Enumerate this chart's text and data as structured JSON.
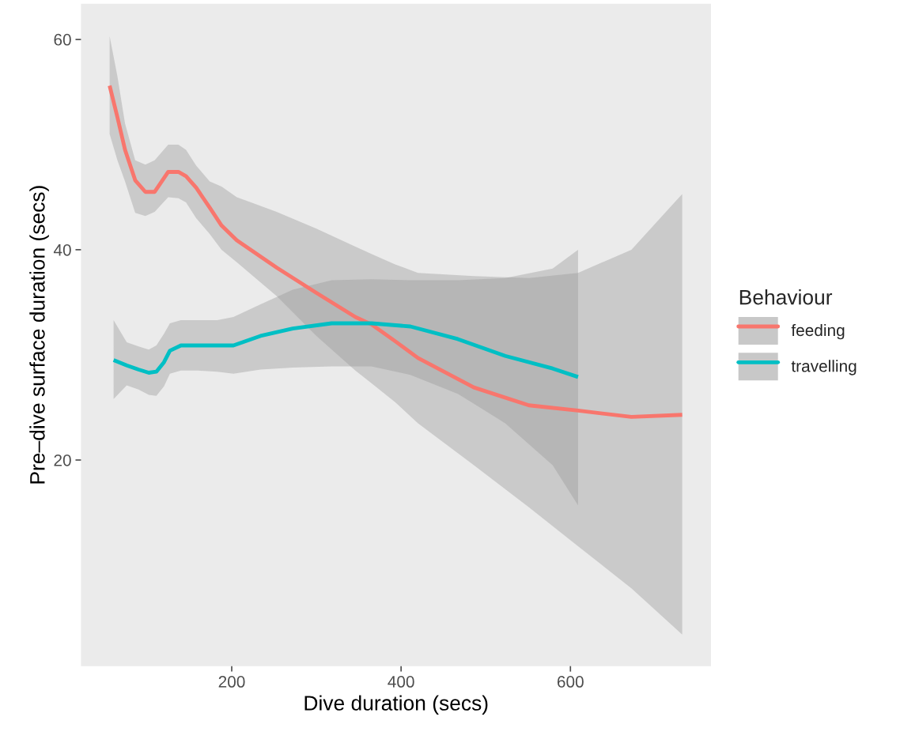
{
  "chart_data": {
    "type": "line",
    "xlabel": "Dive duration (secs)",
    "ylabel": "Pre–dive surface duration (secs)",
    "legend_title": "Behaviour",
    "legend": "right",
    "grid": false,
    "marker": "none",
    "line_style": "solid",
    "xlim": [
      22,
      766
    ],
    "ylim": [
      0.4,
      63.4
    ],
    "xticks": [
      200,
      400,
      600
    ],
    "yticks": [
      20,
      40,
      60
    ],
    "series": [
      {
        "name": "feeding",
        "color": "#f8766d",
        "x": [
          55.8,
          65,
          74,
          86,
          98,
          109,
          125,
          137,
          146,
          158,
          174,
          188,
          206,
          253,
          300,
          346,
          365,
          393,
          420,
          486,
          551,
          609,
          672,
          732
        ],
        "values": [
          55.6,
          52.6,
          49.5,
          46.6,
          45.5,
          45.5,
          47.4,
          47.4,
          47.0,
          45.9,
          44.0,
          42.3,
          40.9,
          38.3,
          35.9,
          33.6,
          32.9,
          31.3,
          29.7,
          26.9,
          25.2,
          24.7,
          24.1,
          24.3
        ],
        "upper": [
          60.3,
          56.5,
          52,
          48.5,
          48.1,
          48.5,
          50,
          50,
          49.5,
          48,
          46.5,
          46,
          45,
          43.6,
          42,
          40.3,
          39.6,
          38.6,
          37.8,
          37.5,
          37.3,
          37.8,
          40,
          45.3
        ],
        "lower": [
          51,
          48.5,
          46.5,
          43.5,
          43.2,
          43.6,
          45,
          44.9,
          44.5,
          43,
          41.5,
          40,
          38.8,
          35.6,
          31.8,
          28.5,
          27.3,
          25.5,
          23.5,
          19.5,
          15.5,
          11.8,
          7.8,
          3.4
        ]
      },
      {
        "name": "travelling",
        "color": "#00bfc4",
        "x": [
          60.5,
          76,
          90,
          102,
          111,
          120,
          127,
          140,
          160,
          183,
          202,
          234,
          272,
          318,
          365,
          411,
          467,
          523,
          579,
          609
        ],
        "values": [
          29.5,
          29.0,
          28.6,
          28.3,
          28.4,
          29.3,
          30.4,
          30.9,
          30.9,
          30.9,
          30.9,
          31.8,
          32.5,
          33.0,
          33.0,
          32.7,
          31.5,
          29.9,
          28.7,
          27.9
        ],
        "upper": [
          33.3,
          31.2,
          30.8,
          30.5,
          30.9,
          32.0,
          33.0,
          33.3,
          33.3,
          33.3,
          33.6,
          34.8,
          36.2,
          37.1,
          37.2,
          37.1,
          37.1,
          37.3,
          38.2,
          40
        ],
        "lower": [
          25.8,
          27.1,
          26.7,
          26.2,
          26.1,
          27,
          28.2,
          28.5,
          28.5,
          28.4,
          28.2,
          28.6,
          28.8,
          28.9,
          28.9,
          28.1,
          26.3,
          23.5,
          19.5,
          15.7
        ]
      }
    ]
  }
}
